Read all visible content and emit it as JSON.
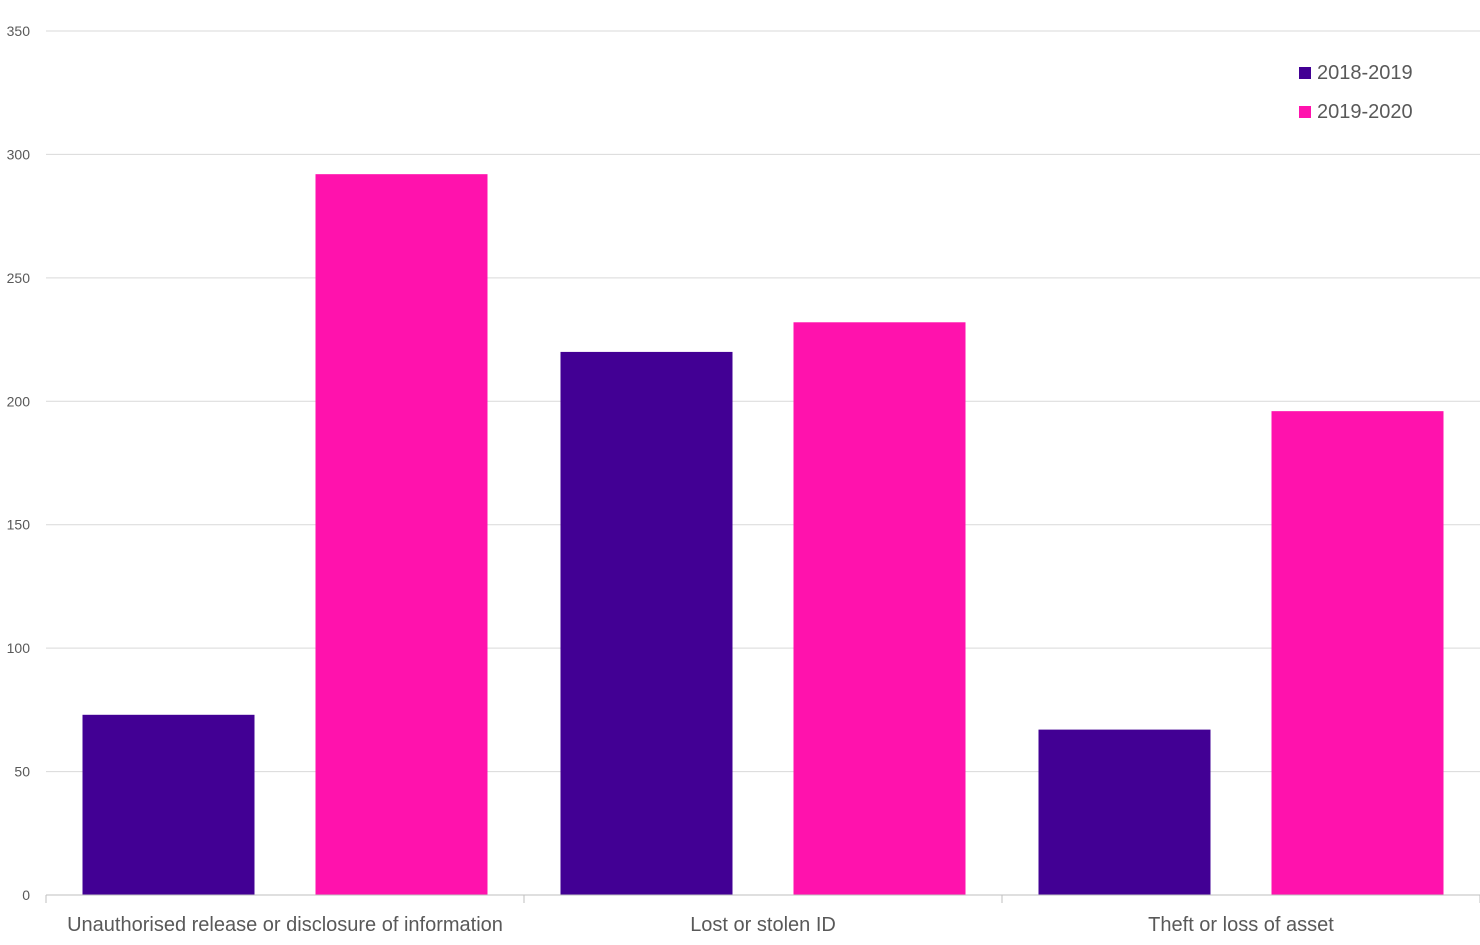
{
  "chart_data": {
    "type": "bar",
    "title": "",
    "xlabel": "",
    "ylabel": "",
    "categories": [
      "Unauthorised release or disclosure of information",
      "Lost or stolen ID",
      "Theft or loss of asset"
    ],
    "series": [
      {
        "name": "2018-2019",
        "color": "#420094",
        "values": [
          73,
          220,
          67
        ]
      },
      {
        "name": "2019-2020",
        "color": "#ff12ad",
        "values": [
          292,
          232,
          196
        ]
      }
    ],
    "ylim": [
      0,
      350
    ],
    "yticks": [
      0,
      50,
      100,
      150,
      200,
      250,
      300,
      350
    ],
    "grid": true,
    "legend_position": "top-right"
  }
}
